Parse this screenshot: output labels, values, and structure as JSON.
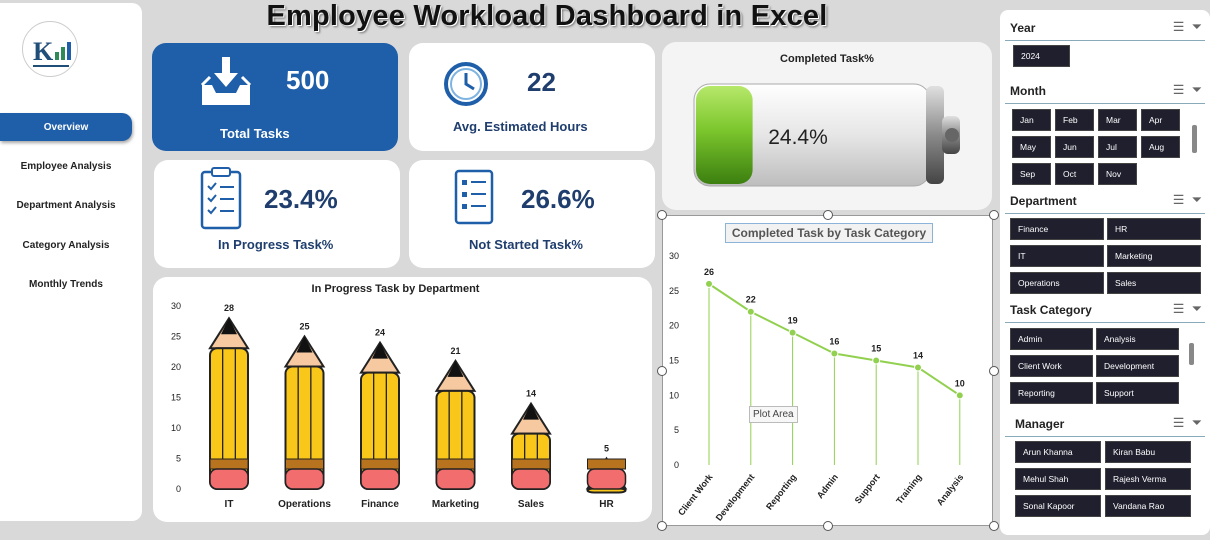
{
  "title": "Employee Workload Dashboard in Excel",
  "nav": {
    "items": [
      {
        "label": "Overview",
        "active": true
      },
      {
        "label": "Employee Analysis",
        "active": false
      },
      {
        "label": "Department Analysis",
        "active": false
      },
      {
        "label": "Category Analysis",
        "active": false
      },
      {
        "label": "Monthly Trends",
        "active": false
      }
    ]
  },
  "kpis": {
    "total_tasks": {
      "value": "500",
      "label": "Total Tasks",
      "icon": "inbox-download-icon"
    },
    "avg_hours": {
      "value": "22",
      "label": "Avg. Estimated Hours",
      "icon": "clock-icon"
    },
    "in_progress": {
      "value": "23.4%",
      "label": "In Progress Task%",
      "icon": "clipboard-checklist-icon"
    },
    "not_started": {
      "value": "26.6%",
      "label": "Not Started Task%",
      "icon": "document-list-icon"
    }
  },
  "battery": {
    "title": "Completed Task%",
    "value_label": "24.4%",
    "fill_fraction": 0.244
  },
  "charts": {
    "bar": {
      "type": "bar",
      "title": "In Progress Task by Department",
      "categories": [
        "IT",
        "Operations",
        "Finance",
        "Marketing",
        "Sales",
        "HR"
      ],
      "values": [
        28,
        25,
        24,
        21,
        14,
        5
      ],
      "ylim": [
        0,
        30
      ],
      "yticks": [
        "0",
        "5",
        "10",
        "15",
        "20",
        "25",
        "30"
      ]
    },
    "line": {
      "type": "line",
      "title": "Completed Task by Task Category",
      "categories": [
        "Client Work",
        "Development",
        "Reporting",
        "Admin",
        "Support",
        "Training",
        "Analysis"
      ],
      "values": [
        26,
        22,
        19,
        16,
        15,
        14,
        10
      ],
      "ylim": [
        0,
        30
      ],
      "yticks": [
        "0",
        "5",
        "10",
        "15",
        "20",
        "25",
        "30"
      ],
      "tooltip": "Plot Area",
      "color": "#92d050"
    }
  },
  "slicers": {
    "year": {
      "label": "Year",
      "items": [
        "2024"
      ]
    },
    "month": {
      "label": "Month",
      "items": [
        "Jan",
        "Feb",
        "Mar",
        "Apr",
        "May",
        "Jun",
        "Jul",
        "Aug",
        "Sep",
        "Oct",
        "Nov"
      ]
    },
    "department": {
      "label": "Department",
      "items": [
        "Finance",
        "HR",
        "IT",
        "Marketing",
        "Operations",
        "Sales"
      ]
    },
    "category": {
      "label": "Task Category",
      "items": [
        "Admin",
        "Analysis",
        "Client Work",
        "Development",
        "Reporting",
        "Support"
      ]
    },
    "manager": {
      "label": "Manager",
      "items": [
        "Arun Khanna",
        "Kiran Babu",
        "Mehul Shah",
        "Rajesh Verma",
        "Sonal Kapoor",
        "Vandana Rao"
      ]
    }
  },
  "colors": {
    "accent": "#1f5ea8",
    "pencil_body": "#f9c61a",
    "pencil_band": "#b8731e",
    "pencil_eraser": "#f26d6d",
    "pencil_wood": "#f6c9a0",
    "battery_green": "#7cc62d"
  }
}
